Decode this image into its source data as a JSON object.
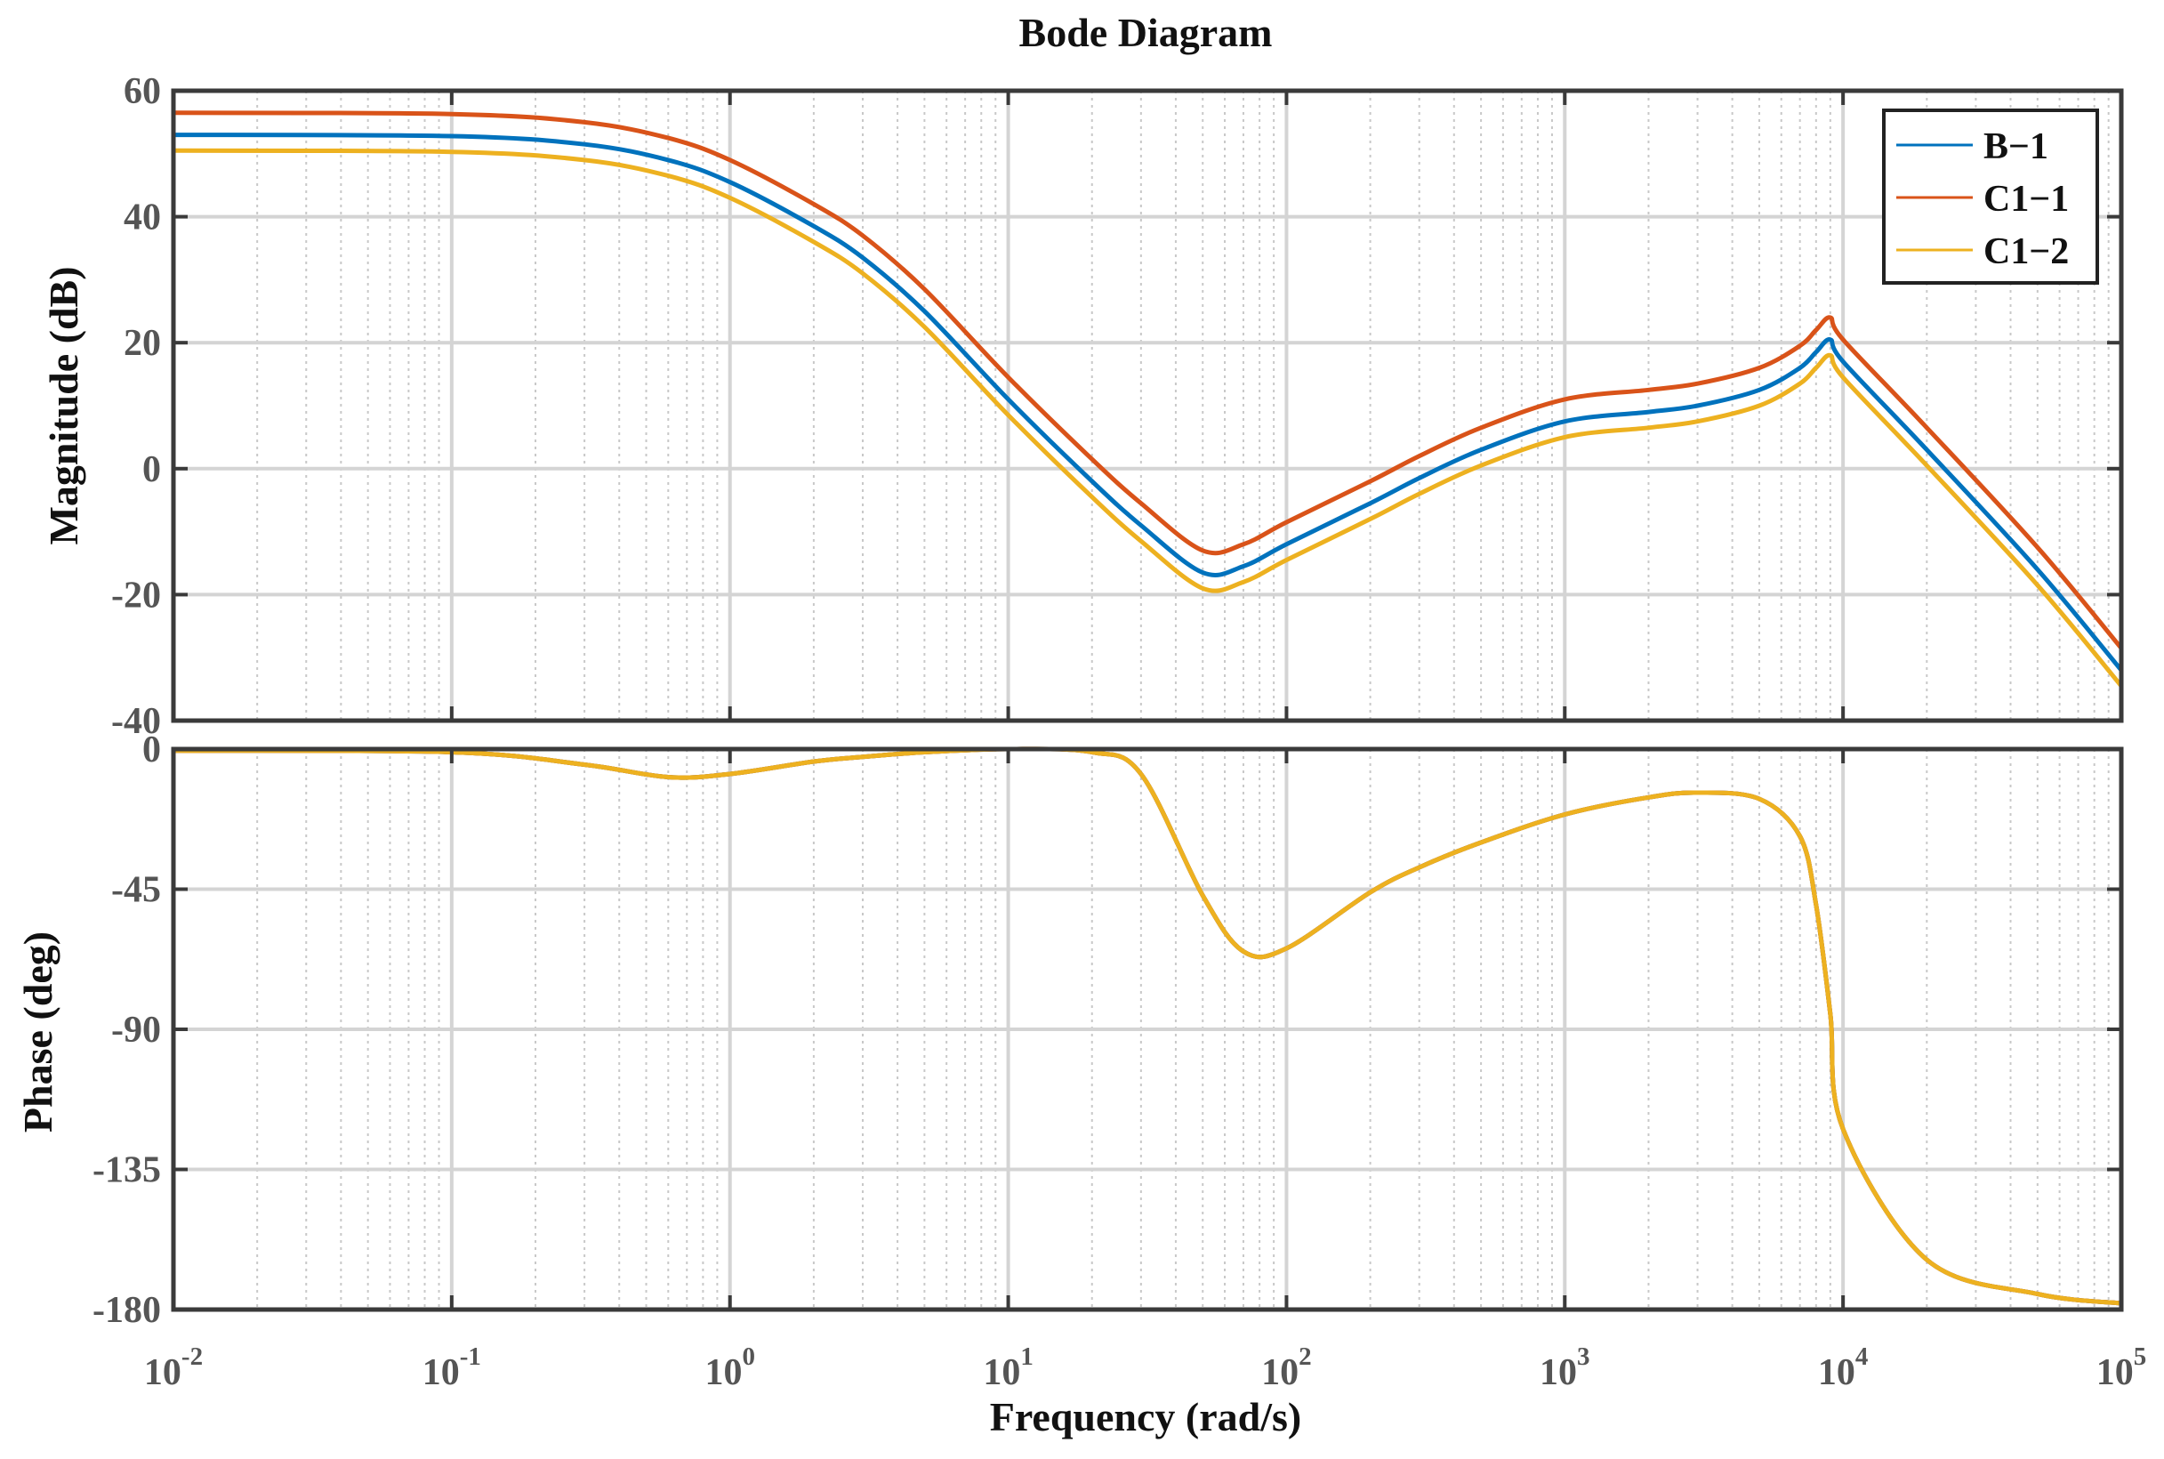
{
  "chart_data": {
    "type": "line",
    "title": "Bode Diagram",
    "xlabel": "Frequency  (rad/s)",
    "x_scale": "log",
    "xlim": [
      0.01,
      100000
    ],
    "x_ticks": [
      {
        "base": "10",
        "exp": "-2"
      },
      {
        "base": "10",
        "exp": "-1"
      },
      {
        "base": "10",
        "exp": "0"
      },
      {
        "base": "10",
        "exp": "1"
      },
      {
        "base": "10",
        "exp": "2"
      },
      {
        "base": "10",
        "exp": "3"
      },
      {
        "base": "10",
        "exp": "4"
      },
      {
        "base": "10",
        "exp": "5"
      }
    ],
    "grid": true,
    "legend_position": "top-right",
    "x": [
      0.01,
      0.1,
      0.3,
      0.6,
      1,
      2,
      3,
      5,
      10,
      20,
      30,
      50,
      70,
      100,
      200,
      300,
      500,
      1000,
      2000,
      3000,
      5000,
      7000,
      8000,
      9000,
      10000,
      20000,
      50000,
      100000
    ],
    "magnitude": {
      "ylabel": "Magnitude (dB)",
      "ylim": [
        -40,
        60
      ],
      "y_ticks": [
        "60",
        "40",
        "20",
        "0",
        "-20",
        "-40"
      ],
      "series": [
        {
          "name": "B−1",
          "color": "#0072BD",
          "values": [
            53,
            52.8,
            51.5,
            49,
            45.5,
            38.5,
            33.5,
            25,
            11,
            -2,
            -9,
            -16.5,
            -15.5,
            -12,
            -5.5,
            -1.5,
            3,
            7.5,
            9,
            10,
            12.5,
            16,
            18.5,
            20.5,
            17,
            3,
            -16,
            -32
          ]
        },
        {
          "name": "C1−1",
          "color": "#D95319",
          "values": [
            56.5,
            56.3,
            55,
            52.5,
            49,
            42,
            37,
            28.5,
            14.5,
            1.5,
            -5.5,
            -13,
            -12,
            -8.5,
            -2,
            2,
            6.5,
            11,
            12.5,
            13.5,
            16,
            19.5,
            22,
            24,
            20.5,
            6.5,
            -12.5,
            -28.5
          ]
        },
        {
          "name": "C1−2",
          "color": "#EDB120",
          "values": [
            50.5,
            50.3,
            49,
            46.5,
            43,
            36,
            31,
            22.5,
            8.5,
            -4.5,
            -11.5,
            -19,
            -18,
            -14.5,
            -8,
            -4,
            0.5,
            5,
            6.5,
            7.5,
            10,
            13.5,
            16,
            18,
            14.5,
            0.5,
            -18.5,
            -34.5
          ]
        }
      ]
    },
    "phase": {
      "ylabel": "Phase (deg)",
      "ylim": [
        -180,
        0
      ],
      "y_ticks": [
        "0",
        "-45",
        "-90",
        "-135",
        "-180"
      ],
      "series": [
        {
          "name": "B−1",
          "color": "#0072BD",
          "values": [
            -0.5,
            -1,
            -5,
            -9,
            -8,
            -4,
            -2.5,
            -1,
            0,
            -1,
            -8,
            -47,
            -65,
            -64,
            -46,
            -38,
            -30,
            -21,
            -15.5,
            -14,
            -16,
            -28,
            -50,
            -85,
            -122,
            -164,
            -175,
            -178
          ]
        },
        {
          "name": "C1−1",
          "color": "#D95319",
          "values": [
            -0.5,
            -1,
            -5,
            -9,
            -8,
            -4,
            -2.5,
            -1,
            0,
            -1,
            -8,
            -47,
            -65,
            -64,
            -46,
            -38,
            -30,
            -21,
            -15.5,
            -14,
            -16,
            -28,
            -50,
            -85,
            -122,
            -164,
            -175,
            -178
          ]
        },
        {
          "name": "C1−2",
          "color": "#EDB120",
          "values": [
            -0.5,
            -1,
            -5,
            -9,
            -8,
            -4,
            -2.5,
            -1,
            0,
            -1,
            -8,
            -47,
            -65,
            -64,
            -46,
            -38,
            -30,
            -21,
            -15.5,
            -14,
            -16,
            -28,
            -50,
            -85,
            -122,
            -164,
            -175,
            -178
          ]
        }
      ]
    }
  }
}
